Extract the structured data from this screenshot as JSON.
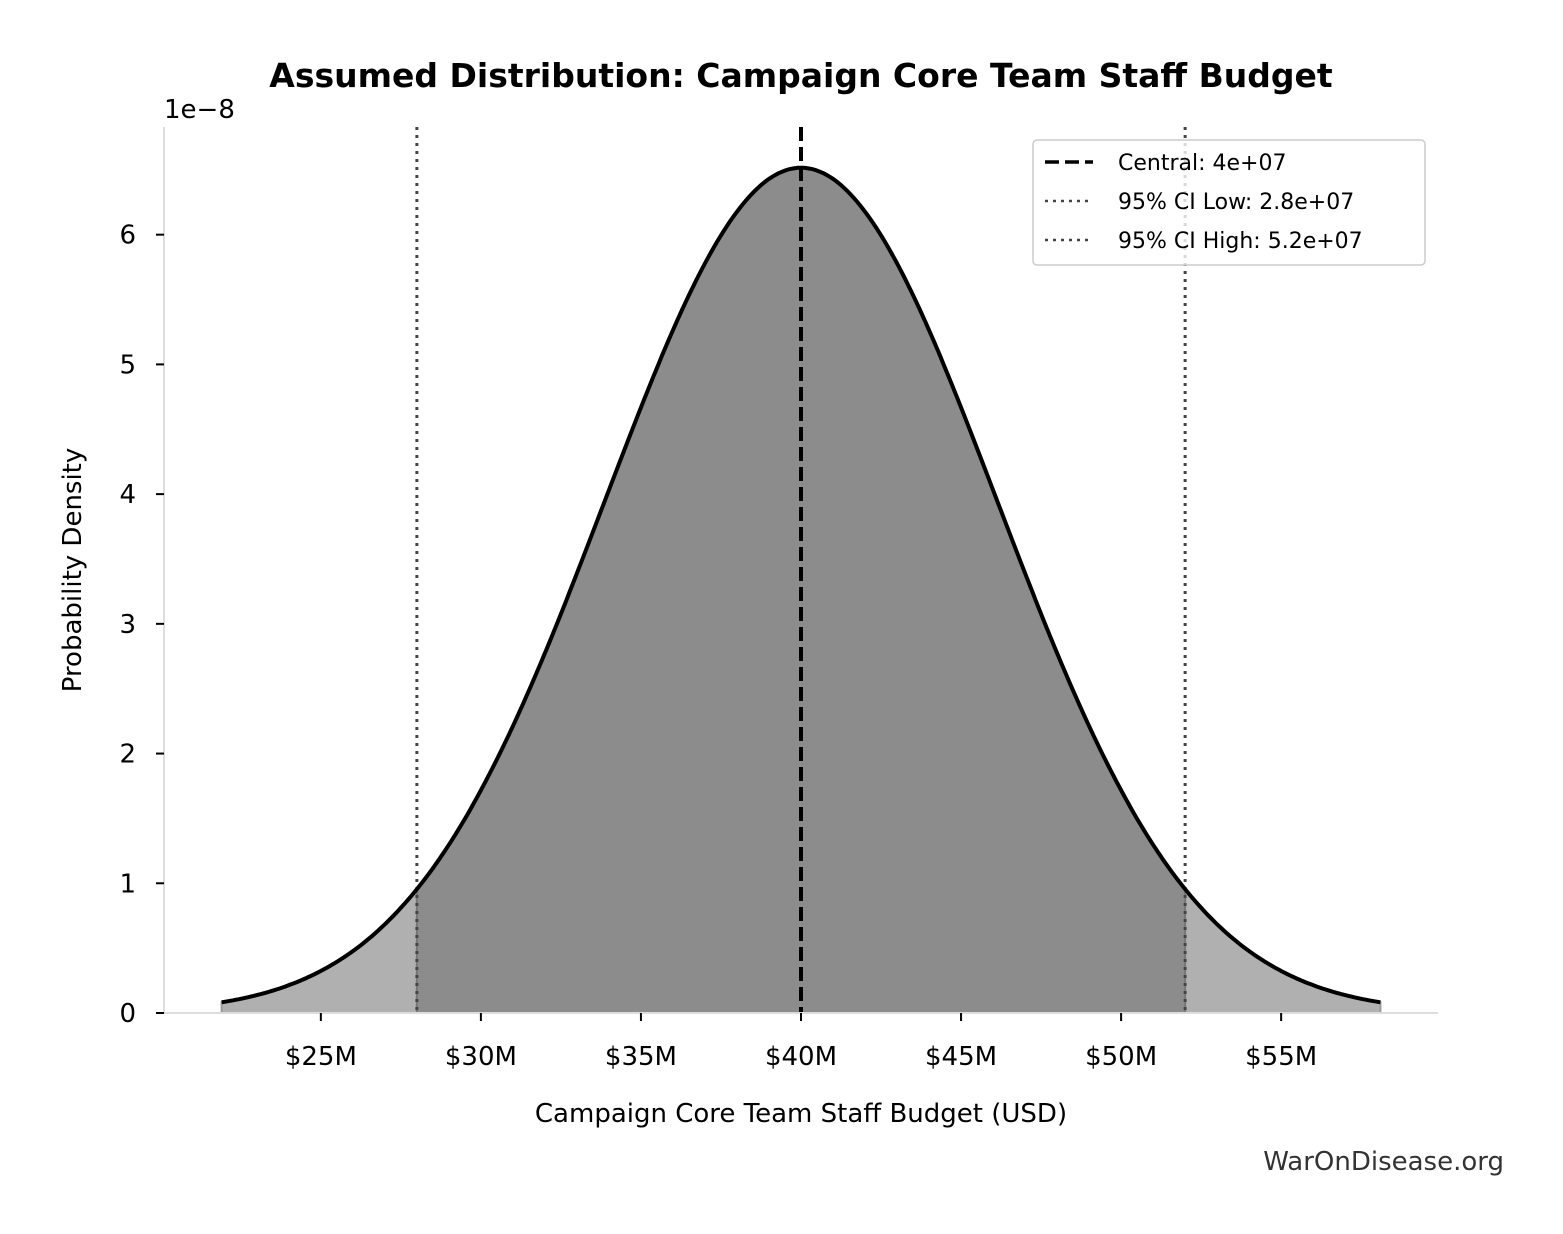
{
  "chart_data": {
    "type": "area",
    "distribution": "normal",
    "title": "Assumed Distribution: Campaign Core Team Staff Budget",
    "xlabel": "Campaign Core Team Staff Budget (USD)",
    "ylabel": "Probability Density",
    "y_offset_label": "1e−8",
    "central": 40000000,
    "ci_low": 28000000,
    "ci_high": 52000000,
    "curve_x_range": [
      21900000,
      58100000
    ],
    "xlim": [
      20100000,
      59900000
    ],
    "ylim": [
      0,
      6.83
    ],
    "y_scale_multiplier": 1e-08,
    "x_ticks": [
      25000000,
      30000000,
      35000000,
      40000000,
      45000000,
      50000000,
      55000000
    ],
    "x_tick_labels": [
      "$25M",
      "$30M",
      "$35M",
      "$40M",
      "$45M",
      "$50M",
      "$55M"
    ],
    "y_ticks": [
      0,
      1,
      2,
      3,
      4,
      5,
      6
    ],
    "y_tick_labels": [
      "0",
      "1",
      "2",
      "3",
      "4",
      "5",
      "6"
    ],
    "grid": false,
    "legend_position": "top-right",
    "legend": [
      {
        "label": "Central: 4e+07",
        "style": "dashed",
        "color": "#000000"
      },
      {
        "label": "95% CI Low: 2.8e+07",
        "style": "dotted",
        "color": "#444444"
      },
      {
        "label": "95% CI High: 5.2e+07",
        "style": "dotted",
        "color": "#444444"
      }
    ],
    "colors": {
      "ci_fill": "#8c8c8c",
      "tail_fill": "#b0b0b0",
      "curve": "#000000"
    }
  },
  "watermark": "WarOnDisease.org"
}
